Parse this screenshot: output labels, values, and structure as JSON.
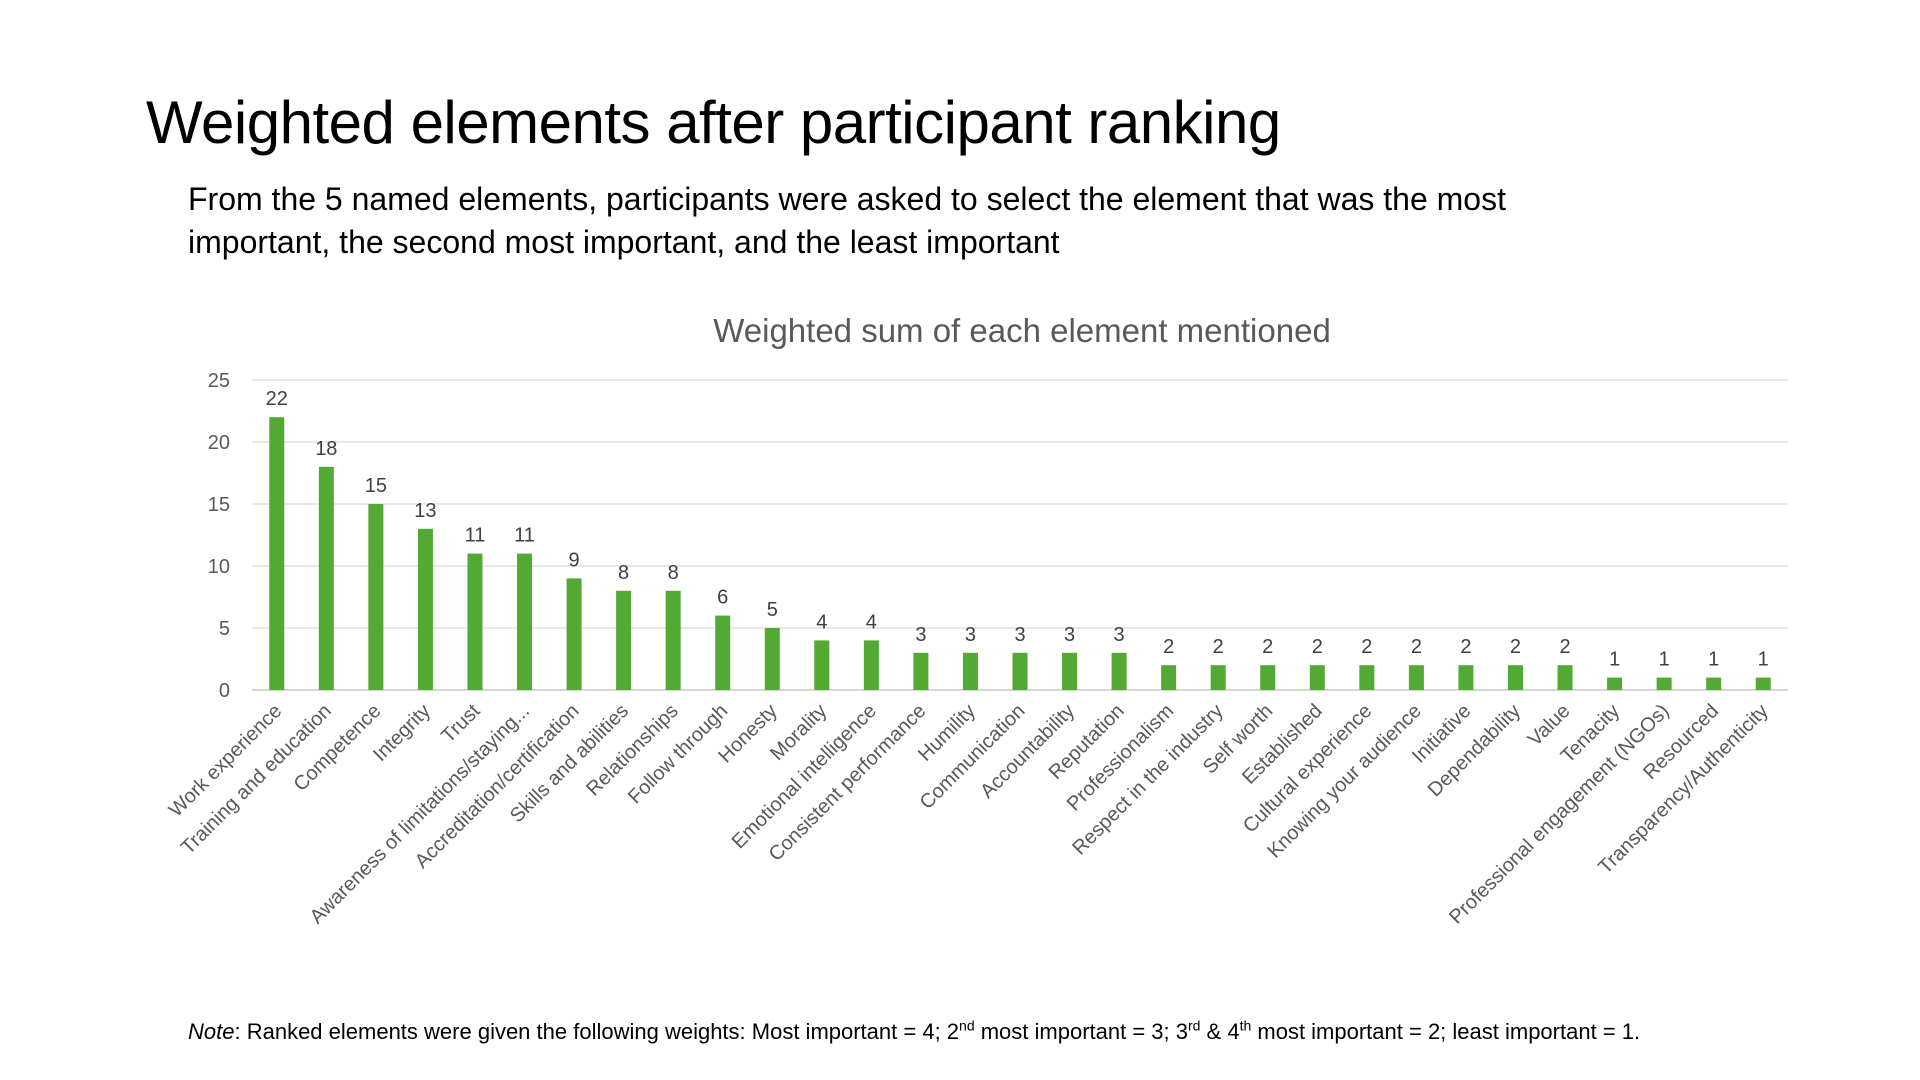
{
  "slide": {
    "title": "Weighted elements after participant ranking",
    "subtitle_line1": "From the 5 named elements, participants were asked to select the element that was the most",
    "subtitle_line2": "important, the second most important, and the least important"
  },
  "note": {
    "label": "Note",
    "p1": ": Ranked elements were given the following weights: Most important = 4; 2",
    "sup1": "nd",
    "p2": " most important = 3; 3",
    "sup2": "rd",
    "p3": " & 4",
    "sup3": "th",
    "p4": " most important = 2; least important = 1."
  },
  "chart_data": {
    "type": "bar",
    "title": "Weighted sum of each element mentioned",
    "xlabel": "",
    "ylabel": "",
    "ylim": [
      0,
      25
    ],
    "yticks": [
      0,
      5,
      10,
      15,
      20,
      25
    ],
    "grid": true,
    "legend": "none",
    "bar_color": "#52a934",
    "categories": [
      "Work experience",
      "Training and education",
      "Competence",
      "Integrity",
      "Trust",
      "Awareness of limitations/staying...",
      "Accreditation/certification",
      "Skills and abilities",
      "Relationships",
      "Follow through",
      "Honesty",
      "Morality",
      "Emotional intelligence",
      "Consistent performance",
      "Humility",
      "Communication",
      "Accountability",
      "Reputation",
      "Professionalism",
      "Respect in the industry",
      "Self worth",
      "Established",
      "Cultural experience",
      "Knowing your audience",
      "Initiative",
      "Dependability",
      "Value",
      "Tenacity",
      "Professional engagement (NGOs)",
      "Resourced",
      "Transparency/Authenticity"
    ],
    "values": [
      22,
      18,
      15,
      13,
      11,
      11,
      9,
      8,
      8,
      6,
      5,
      4,
      4,
      3,
      3,
      3,
      3,
      3,
      2,
      2,
      2,
      2,
      2,
      2,
      2,
      2,
      2,
      1,
      1,
      1,
      1
    ]
  }
}
